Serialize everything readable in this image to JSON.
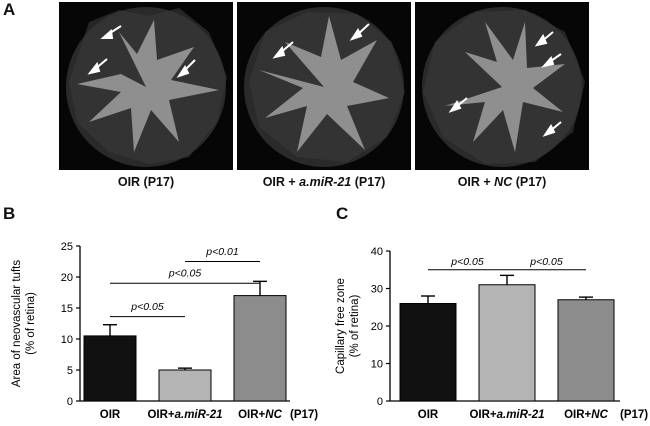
{
  "panels": {
    "a": "A",
    "b": "B",
    "c": "C"
  },
  "images": [
    {
      "caption_pre": "OIR (P17)",
      "caption_italic": "",
      "caption_post": ""
    },
    {
      "caption_pre": "OIR + ",
      "caption_italic": "a.miR-21",
      "caption_post": " (P17)"
    },
    {
      "caption_pre": "OIR + ",
      "caption_italic": "NC",
      "caption_post": " (P17)"
    }
  ],
  "colors": {
    "black_bar": "#111111",
    "light_bar": "#b4b4b4",
    "mid_bar": "#8c8c8c",
    "retina_bg": "#060606",
    "avascular": "#8f8f8f"
  },
  "chart_data": [
    {
      "type": "bar",
      "ylabel_line1": "Area of neovascular tufts",
      "ylabel_line2": "(% of retina)",
      "categories": [
        {
          "pre": "OIR",
          "italic": ""
        },
        {
          "pre": "OIR+",
          "italic": "a.miR-21"
        },
        {
          "pre": "OIR+",
          "italic": "NC"
        }
      ],
      "suffix": "(P17)",
      "values": [
        10.5,
        5.0,
        17.0
      ],
      "errors": [
        1.8,
        0.3,
        2.3
      ],
      "ylim": [
        0,
        25
      ],
      "yticks": [
        0,
        5,
        10,
        15,
        20,
        25
      ],
      "annotations": [
        {
          "text": "p<0.05",
          "from": 0,
          "to": 1,
          "y": 13.6,
          "label_y": 15.3
        },
        {
          "text": "p<0.05",
          "from": 0,
          "to": 2,
          "y": 19.0,
          "label_y": 20.7
        },
        {
          "text": "p<0.01",
          "from": 1,
          "to": 2,
          "y": 22.5,
          "label_y": 24.2
        }
      ]
    },
    {
      "type": "bar",
      "ylabel_line1": "Capillary free zone",
      "ylabel_line2": "(% of retina)",
      "categories": [
        {
          "pre": "OIR",
          "italic": ""
        },
        {
          "pre": "OIR+",
          "italic": "a.miR-21"
        },
        {
          "pre": "OIR+",
          "italic": "NC"
        }
      ],
      "suffix": "(P17)",
      "values": [
        26.0,
        31.0,
        27.0
      ],
      "errors": [
        2.0,
        2.5,
        0.7
      ],
      "ylim": [
        0,
        40
      ],
      "yticks": [
        0,
        10,
        20,
        30,
        40
      ],
      "annotations": [
        {
          "text": "p<0.05",
          "from": 0,
          "to": 1,
          "y": 35.0,
          "label_y": 37.3
        },
        {
          "text": "p<0.05",
          "from": 1,
          "to": 2,
          "y": 35.0,
          "label_y": 37.3
        }
      ]
    }
  ]
}
